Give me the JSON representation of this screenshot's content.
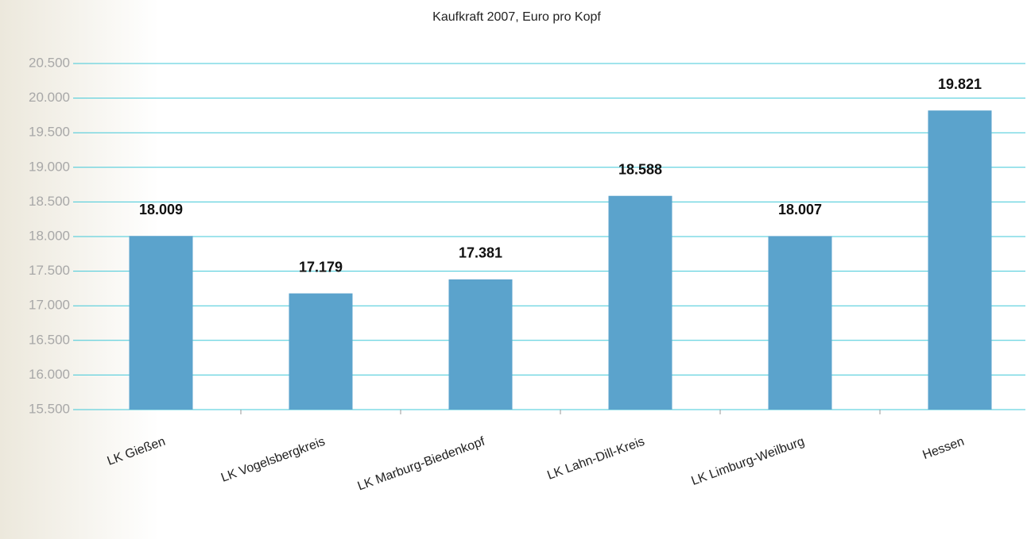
{
  "chart_data": {
    "type": "bar",
    "title": "Kaufkraft 2007, Euro pro Kopf",
    "categories": [
      "LK Gießen",
      "LK Vogelsbergkreis",
      "LK Marburg-Biedenkopf",
      "LK Lahn-Dill-Kreis",
      "LK Limburg-Weilburg",
      "Hessen"
    ],
    "values": [
      18009,
      17179,
      17381,
      18588,
      18007,
      19821
    ],
    "value_labels": [
      "18.009",
      "17.179",
      "17.381",
      "18.588",
      "18.007",
      "19.821"
    ],
    "color": "#5ba3cc",
    "ylim": [
      15500,
      20500
    ],
    "yticks": [
      {
        "value": 15500,
        "label": "15.500"
      },
      {
        "value": 16000,
        "label": "16.000"
      },
      {
        "value": 16500,
        "label": "16.500"
      },
      {
        "value": 17000,
        "label": "17.000"
      },
      {
        "value": 17500,
        "label": "17.500"
      },
      {
        "value": 18000,
        "label": "18.000"
      },
      {
        "value": 18500,
        "label": "18.500"
      },
      {
        "value": 19000,
        "label": "19.000"
      },
      {
        "value": 19500,
        "label": "19.500"
      },
      {
        "value": 20000,
        "label": "20.000"
      },
      {
        "value": 20500,
        "label": "20.500"
      }
    ],
    "grid": true
  }
}
